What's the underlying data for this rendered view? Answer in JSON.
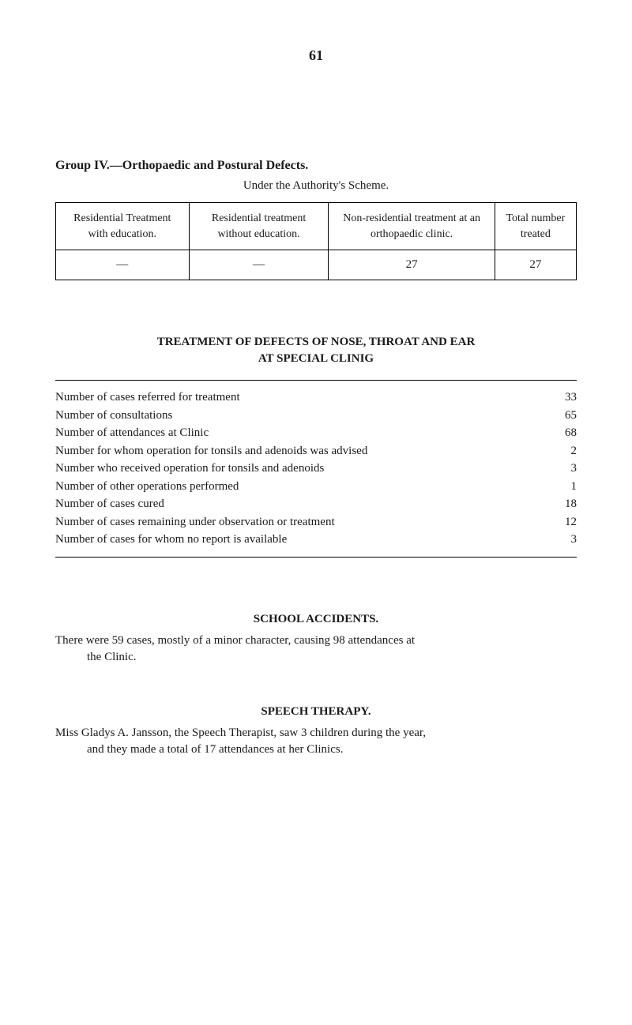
{
  "page_number": "61",
  "group4": {
    "title": "Group IV.—Orthopaedic and Postural Defects.",
    "subtitle": "Under the Authority's Scheme.",
    "table": {
      "headers": [
        "Residential Treatment with education.",
        "Residential treatment without education.",
        "Non-residential treatment at an orthopaedic clinic.",
        "Total number treated"
      ],
      "row": [
        "—",
        "—",
        "27",
        "27"
      ]
    }
  },
  "treatment": {
    "heading1": "TREATMENT OF DEFECTS OF NOSE, THROAT AND EAR",
    "heading2": "AT SPECIAL CLINIG",
    "items": [
      {
        "label": "Number of cases referred for treatment",
        "value": "33"
      },
      {
        "label": "Number of consultations",
        "value": "65"
      },
      {
        "label": "Number of attendances at Clinic",
        "value": "68"
      },
      {
        "label": "Number for whom operation for tonsils and adenoids was advised",
        "value": "2"
      },
      {
        "label": "Number who received operation for tonsils and adenoids",
        "value": "3"
      },
      {
        "label": "Number of other operations performed",
        "value": "1"
      },
      {
        "label": "Number of cases cured",
        "value": "18"
      },
      {
        "label": "Number of cases remaining under observation or treatment",
        "value": "12"
      },
      {
        "label": "Number of cases for whom no report is available",
        "value": "3"
      }
    ]
  },
  "accidents": {
    "heading": "SCHOOL ACCIDENTS.",
    "line1": "There were 59 cases, mostly of a minor character, causing 98 attendances at",
    "line2": "the Clinic."
  },
  "speech": {
    "heading": "SPEECH THERAPY.",
    "line1": "Miss Gladys A. Jansson, the Speech Therapist, saw 3 children during the year,",
    "line2": "and they made a total of 17 attendances at her Clinics."
  }
}
